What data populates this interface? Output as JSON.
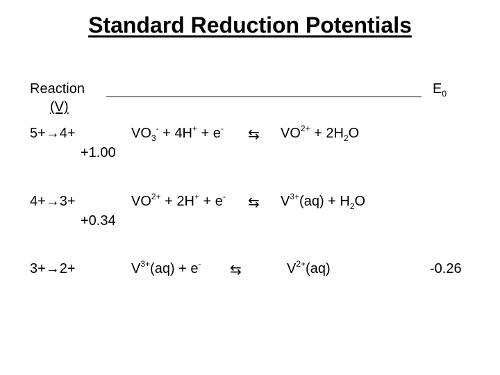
{
  "slide": {
    "title": "Standard Reduction Potentials",
    "header": {
      "reaction_label": "Reaction",
      "potential_label": "E",
      "potential_sub": "0",
      "unit": "(V)"
    },
    "arrow_symbol": "⇆",
    "rows": [
      {
        "transition": "5+→4+",
        "reactant": [
          "VO",
          "3",
          "-",
          " + 4H",
          "+",
          " + e",
          "-"
        ],
        "product": [
          "VO",
          "2+",
          " + 2H",
          "2",
          "O"
        ],
        "potential": "+1.00"
      },
      {
        "transition": "4+→3+",
        "reactant": [
          "VO",
          "2+",
          " + 2H",
          "+",
          " + e",
          "-"
        ],
        "product": [
          "V",
          "3+",
          "(aq)  + H",
          "2",
          "O"
        ],
        "potential": "+0.34"
      },
      {
        "transition": "3+→2+",
        "reactant": [
          "V",
          "3+",
          "(aq)  + e",
          "-"
        ],
        "product": [
          "V",
          "2+",
          "(aq)"
        ],
        "potential": "-0.26"
      }
    ]
  }
}
